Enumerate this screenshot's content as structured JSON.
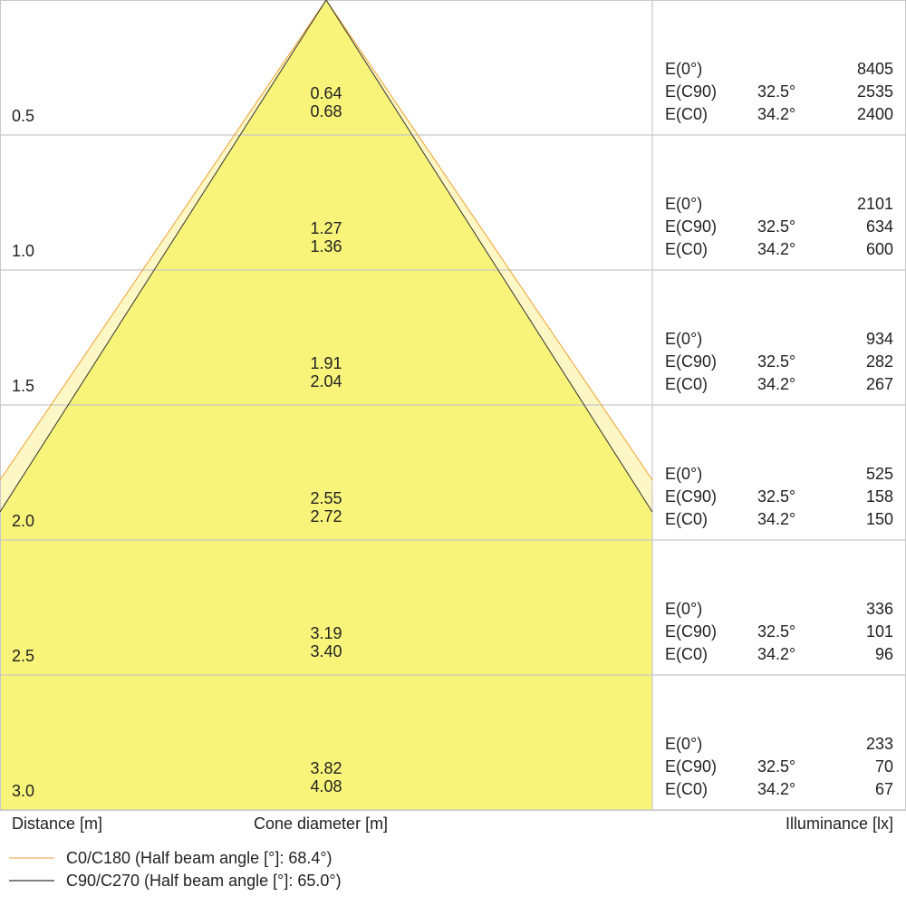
{
  "chart_data": {
    "type": "cone-diagram",
    "xlabel_left": "Distance [m]",
    "xlabel_center": "Cone diameter [m]",
    "xlabel_right": "Illuminance [lx]",
    "series": [
      {
        "name": "C0/C180 (Half beam angle [°]: 68.4°)",
        "half_beam_angle": 68.4,
        "color": "#f0a030"
      },
      {
        "name": "C90/C270 (Half beam angle [°]: 65.0°)",
        "half_beam_angle": 65.0,
        "color": "#333333"
      }
    ],
    "fill_color": "#f8f47a",
    "fill_light_color": "#fcf7c4",
    "rows": [
      {
        "distance": "0.5",
        "d1": "0.64",
        "d2": "0.68",
        "e0": "8405",
        "c90a": "32.5°",
        "c90": "2535",
        "c0a": "34.2°",
        "c0": "2400"
      },
      {
        "distance": "1.0",
        "d1": "1.27",
        "d2": "1.36",
        "e0": "2101",
        "c90a": "32.5°",
        "c90": "634",
        "c0a": "34.2°",
        "c0": "600"
      },
      {
        "distance": "1.5",
        "d1": "1.91",
        "d2": "2.04",
        "e0": "934",
        "c90a": "32.5°",
        "c90": "282",
        "c0a": "34.2°",
        "c0": "267"
      },
      {
        "distance": "2.0",
        "d1": "2.55",
        "d2": "2.72",
        "e0": "525",
        "c90a": "32.5°",
        "c90": "158",
        "c0a": "34.2°",
        "c0": "150"
      },
      {
        "distance": "2.5",
        "d1": "3.19",
        "d2": "3.40",
        "e0": "336",
        "c90a": "32.5°",
        "c90": "101",
        "c0a": "34.2°",
        "c0": "96"
      },
      {
        "distance": "3.0",
        "d1": "3.82",
        "d2": "4.08",
        "e0": "233",
        "c90a": "32.5°",
        "c90": "70",
        "c0a": "34.2°",
        "c0": "67"
      }
    ],
    "labels": {
      "e0": "E(0°)",
      "e90": "E(C90)",
      "ec0": "E(C0)"
    }
  }
}
